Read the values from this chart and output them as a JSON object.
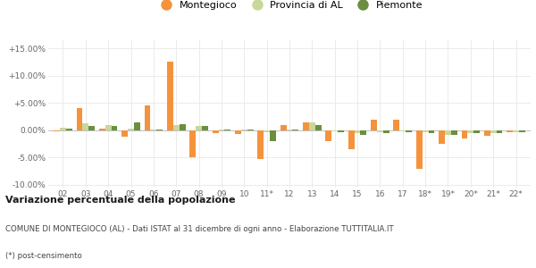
{
  "categories": [
    "02",
    "03",
    "04",
    "05",
    "06",
    "07",
    "08",
    "09",
    "10",
    "11*",
    "12",
    "13",
    "14",
    "15",
    "16",
    "17",
    "18*",
    "19*",
    "20*",
    "21*",
    "22*"
  ],
  "montegioco": [
    -0.2,
    4.0,
    0.3,
    -1.2,
    4.6,
    12.6,
    -5.0,
    -0.5,
    -0.7,
    -5.2,
    1.0,
    1.5,
    -2.0,
    -3.5,
    2.0,
    2.0,
    -7.0,
    -2.5,
    -1.5,
    -1.0,
    -0.3
  ],
  "provincia_al": [
    0.5,
    1.2,
    1.0,
    0.3,
    0.2,
    1.0,
    0.8,
    0.2,
    0.2,
    -0.3,
    0.2,
    1.5,
    -0.2,
    -0.5,
    -0.3,
    -0.2,
    -0.4,
    -0.8,
    -0.5,
    -0.5,
    -0.3
  ],
  "piemonte": [
    0.3,
    0.8,
    0.8,
    1.5,
    0.2,
    1.1,
    0.8,
    0.1,
    0.1,
    -2.0,
    0.2,
    1.0,
    -0.3,
    -0.8,
    -0.5,
    -0.3,
    -0.5,
    -0.8,
    -0.6,
    -0.5,
    -0.3
  ],
  "color_montegioco": "#f5923c",
  "color_provincia": "#c8d89a",
  "color_piemonte": "#6b8f3e",
  "ylim": [
    -10.5,
    16.5
  ],
  "yticks": [
    -10.0,
    -5.0,
    0.0,
    5.0,
    10.0,
    15.0
  ],
  "ytick_labels": [
    "-10.00%",
    "-5.00%",
    "0.00%",
    "+5.00%",
    "+10.00%",
    "+15.00%"
  ],
  "title_bold": "Variazione percentuale della popolazione",
  "subtitle1": "COMUNE DI MONTEGIOCO (AL) - Dati ISTAT al 31 dicembre di ogni anno - Elaborazione TUTTITALIA.IT",
  "subtitle2": "(*) post-censimento",
  "legend_labels": [
    "Montegioco",
    "Provincia di AL",
    "Piemonte"
  ],
  "background_color": "#ffffff",
  "grid_color": "#e8e8e8"
}
